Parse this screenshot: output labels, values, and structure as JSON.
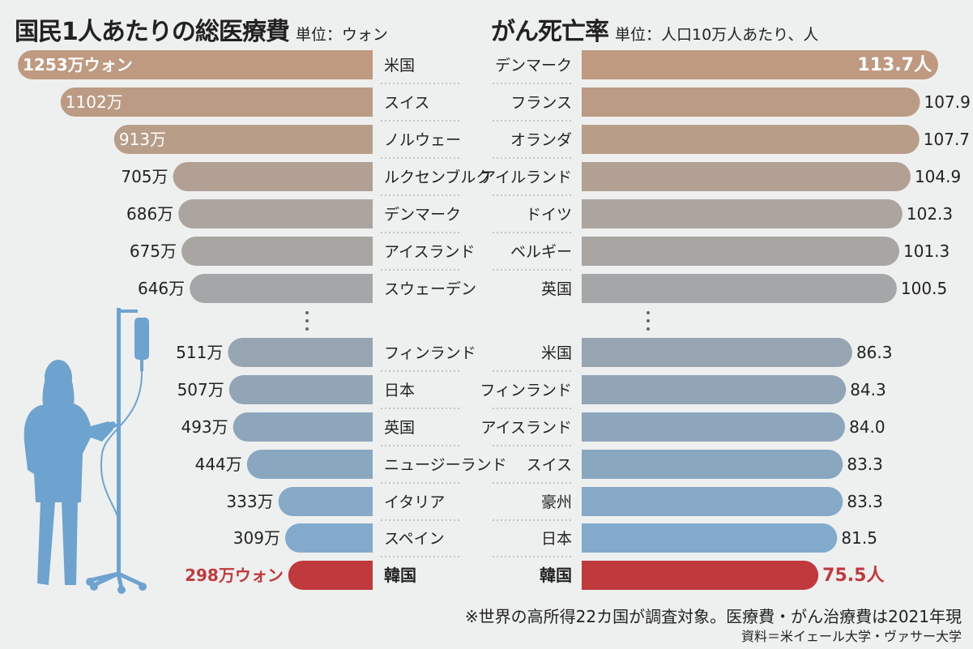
{
  "left_title": "国民1人あたりの総医療費",
  "left_unit": "単位：ウォン",
  "right_title": "がん死亡率",
  "right_unit": "単位：人口10万人あたり、人",
  "footnote": "※世界の高所得22カ国が調査対象。医療費・がん治療費は2021年現",
  "source": "資料＝米イェール大学・ヴァサー大学",
  "chart_data": [
    {
      "type": "bar",
      "title": "国民1人あたりの総医療費",
      "unit": "ウォン",
      "categories": [
        "米国",
        "スイス",
        "ノルウェー",
        "ルクセンブルク",
        "デンマーク",
        "アイスランド",
        "スウェーデン",
        "フィンランド",
        "日本",
        "英国",
        "ニュージーランド",
        "イタリア",
        "スペイン",
        "韓国"
      ],
      "values": [
        1253,
        1102,
        913,
        705,
        686,
        675,
        646,
        511,
        507,
        493,
        444,
        333,
        309,
        298
      ],
      "labels": [
        "1253万ウォン",
        "1102万",
        "913万",
        "705万",
        "686万",
        "675万",
        "646万",
        "511万",
        "507万",
        "493万",
        "444万",
        "333万",
        "309万",
        "298万ウォン"
      ],
      "value_unit": "万ウォン",
      "gap_after_index": 6,
      "colors": [
        "#bf9a80",
        "#bb9b84",
        "#b89d88",
        "#b2a094",
        "#aca49f",
        "#a8a5a3",
        "#a4a6a8",
        "#97a4b2",
        "#92a5b7",
        "#8ea6bc",
        "#8aa7c0",
        "#85a9c7",
        "#82aacc",
        "#c0393d"
      ]
    },
    {
      "type": "bar",
      "title": "がん死亡率",
      "unit": "人口10万人あたり、人",
      "categories": [
        "デンマーク",
        "フランス",
        "オランダ",
        "アイルランド",
        "ドイツ",
        "ベルギー",
        "英国",
        "米国",
        "フィンランド",
        "アイスランド",
        "スイス",
        "豪州",
        "日本",
        "韓国"
      ],
      "values": [
        113.7,
        107.9,
        107.7,
        104.9,
        102.3,
        101.3,
        100.5,
        86.3,
        84.3,
        84.0,
        83.3,
        83.3,
        81.5,
        75.5
      ],
      "labels": [
        "113.7人",
        "107.9",
        "107.7",
        "104.9",
        "102.3",
        "101.3",
        "100.5",
        "86.3",
        "84.3",
        "84.0",
        "83.3",
        "83.3",
        "81.5",
        "75.5人"
      ],
      "gap_after_index": 6,
      "colors": [
        "#bf9a80",
        "#bb9b84",
        "#b89d88",
        "#b2a094",
        "#aca49f",
        "#a8a5a3",
        "#a4a6a8",
        "#97a4b2",
        "#92a5b7",
        "#8ea6bc",
        "#8aa7c0",
        "#85a9c7",
        "#82aacc",
        "#c0393d"
      ]
    }
  ],
  "colors": {
    "highlight": "#c0393d",
    "patient_figure": "#6ea3cf",
    "text": "#222222"
  }
}
